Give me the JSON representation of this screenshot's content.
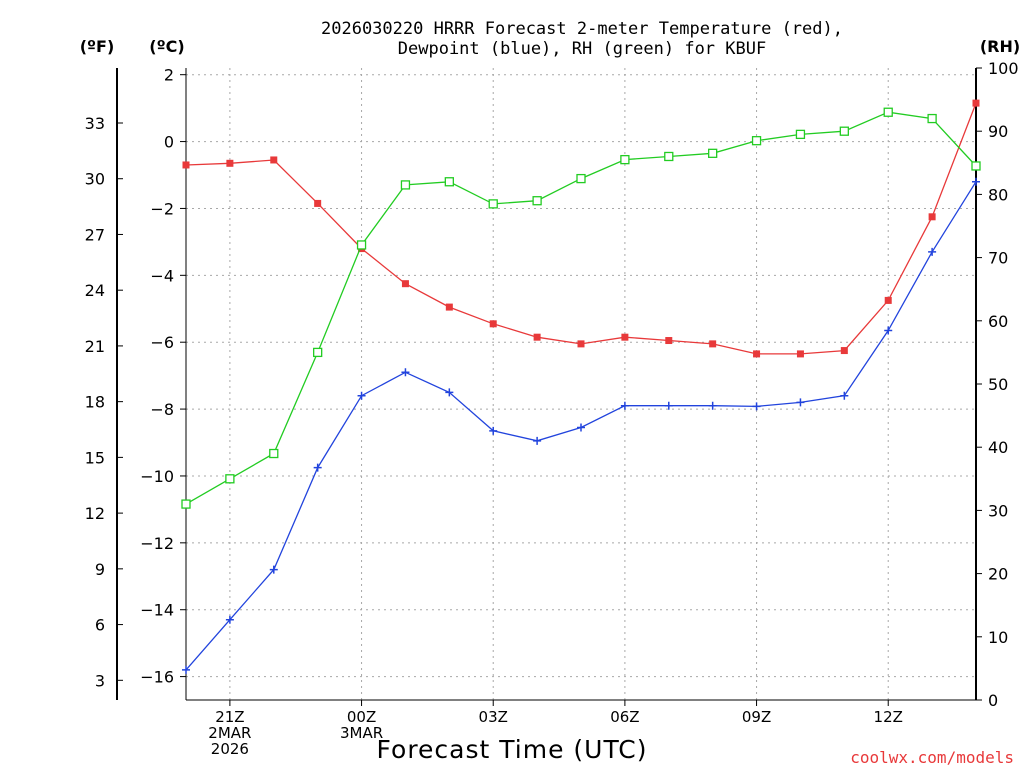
{
  "chart_data": {
    "type": "line",
    "title_line1": "2026030220 HRRR Forecast 2-meter Temperature (red),",
    "title_line2": "Dewpoint (blue), RH (green) for KBUF",
    "xlabel": "Forecast Time (UTC)",
    "credit": "coolwx.com/models",
    "unit_f": "(ºF)",
    "unit_c": "(ºC)",
    "unit_rh": "(RH)",
    "x_hours": [
      -4,
      -3,
      -2,
      -1,
      0,
      1,
      2,
      3,
      4,
      5,
      6,
      7,
      8,
      9,
      10,
      11,
      12,
      13,
      14
    ],
    "x_ticks": [
      {
        "hour": -3,
        "lines": [
          "21Z",
          "2MAR",
          "2026"
        ]
      },
      {
        "hour": 0,
        "lines": [
          "00Z",
          "3MAR"
        ]
      },
      {
        "hour": 3,
        "lines": [
          "03Z"
        ]
      },
      {
        "hour": 6,
        "lines": [
          "06Z"
        ]
      },
      {
        "hour": 9,
        "lines": [
          "09Z"
        ]
      },
      {
        "hour": 12,
        "lines": [
          "12Z"
        ]
      }
    ],
    "celsius_axis": {
      "min": -16.7,
      "max": 2.2,
      "ticks": [
        2,
        0,
        -2,
        -4,
        -6,
        -8,
        -10,
        -12,
        -14,
        -16
      ]
    },
    "fahrenheit_axis": {
      "ticks": [
        33,
        30,
        27,
        24,
        21,
        18,
        15,
        12,
        9,
        6,
        3
      ]
    },
    "rh_axis": {
      "min": 0,
      "max": 100,
      "ticks": [
        100,
        90,
        80,
        70,
        60,
        50,
        40,
        30,
        20,
        10,
        0
      ]
    },
    "series": [
      {
        "name": "2-meter Temperature",
        "units": "C",
        "color": "#e8393a",
        "marker": "filled-square",
        "values": [
          -0.7,
          -0.65,
          -0.55,
          -1.85,
          -3.2,
          -4.25,
          -4.95,
          -5.45,
          -5.85,
          -6.05,
          -5.85,
          -5.95,
          -6.05,
          -6.35,
          -6.35,
          -6.25,
          -4.75,
          -2.25,
          1.15
        ]
      },
      {
        "name": "Dewpoint",
        "units": "C",
        "color": "#2244dd",
        "marker": "plus",
        "values": [
          -15.8,
          -14.3,
          -12.8,
          -9.75,
          -7.6,
          -6.9,
          -7.5,
          -8.65,
          -8.95,
          -8.55,
          -7.9,
          -7.9,
          -7.9,
          -7.92,
          -7.8,
          -7.6,
          -5.65,
          -3.3,
          -1.2
        ]
      },
      {
        "name": "Relative Humidity",
        "units": "%",
        "color": "#22cc22",
        "marker": "open-square",
        "values": [
          31,
          35,
          39,
          55,
          72,
          81.5,
          82,
          78.5,
          79,
          82.5,
          85.5,
          86,
          86.5,
          88.5,
          89.5,
          90,
          93,
          92,
          84.5
        ]
      }
    ]
  }
}
